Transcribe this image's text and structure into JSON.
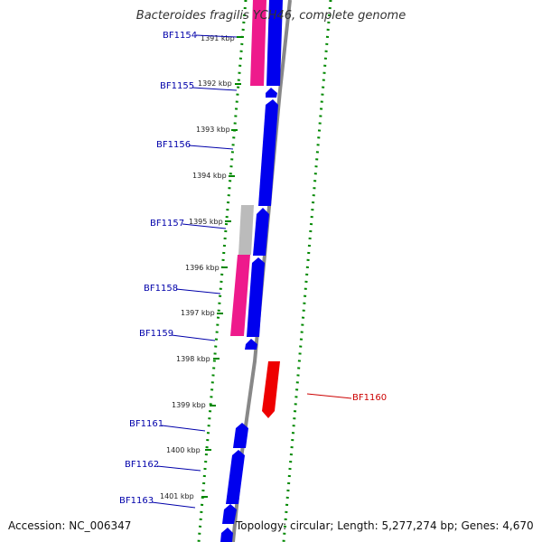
{
  "title": "Bacteroides fragilis YCH46, complete genome",
  "footer": {
    "accession": "Accession: NC_006347",
    "summary": "Topology: circular; Length: 5,277,274 bp; Genes: 4,670"
  },
  "colors": {
    "forward_gene": "#0000ee",
    "reverse_gene": "#ee1a8c",
    "pseudo_gene": "#bbbbbb",
    "highlight_gene": "#ee0000",
    "backbone": "#888888",
    "gc_dots": "#008800",
    "forward_label": "#0000aa",
    "highlight_label": "#cc0000"
  },
  "ruler": [
    "1391 kbp",
    "1392 kbp",
    "1393 kbp",
    "1394 kbp",
    "1395 kbp",
    "1396 kbp",
    "1397 kbp",
    "1398 kbp",
    "1399 kbp",
    "1400 kbp",
    "1401 kbp"
  ],
  "genes": [
    {
      "name": "BF1154",
      "strand": "reverse",
      "highlight": false
    },
    {
      "name": "BF1155",
      "strand": "forward",
      "highlight": false
    },
    {
      "name": "BF1156",
      "strand": "forward",
      "highlight": false
    },
    {
      "name": "BF1157",
      "strand": "forward",
      "highlight": false
    },
    {
      "name": "BF1158",
      "strand": "forward",
      "highlight": false
    },
    {
      "name": "BF1159",
      "strand": "forward",
      "highlight": false
    },
    {
      "name": "BF1160",
      "strand": "reverse",
      "highlight": true
    },
    {
      "name": "BF1161",
      "strand": "forward",
      "highlight": false
    },
    {
      "name": "BF1162",
      "strand": "forward",
      "highlight": false
    },
    {
      "name": "BF1163",
      "strand": "forward",
      "highlight": false
    }
  ]
}
